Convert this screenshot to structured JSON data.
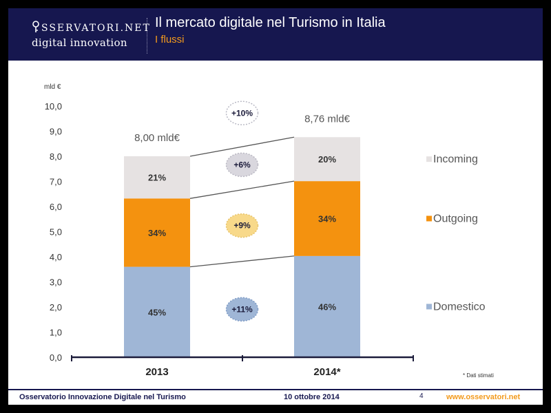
{
  "header": {
    "logo_top": "SSERVATORI.NET",
    "logo_bottom": "digital innovation",
    "title": "Il mercato digitale nel Turismo in Italia",
    "subtitle": "I flussi"
  },
  "colors": {
    "header_bg": "#16174f",
    "accent": "#f39a1c",
    "domestico": "#9fb6d6",
    "outgoing": "#f4920f",
    "incoming": "#e6e2e2",
    "badge_growth": "#f8d98a",
    "badge_light": "#d9d7de"
  },
  "chart_data": {
    "type": "bar",
    "stacked": true,
    "unit_label": "mld €",
    "ylim": [
      0,
      10
    ],
    "yticks": [
      "0,0",
      "1,0",
      "2,0",
      "3,0",
      "4,0",
      "5,0",
      "6,0",
      "7,0",
      "8,0",
      "9,0",
      "10,0"
    ],
    "categories": [
      "2013",
      "2014*"
    ],
    "totals": [
      8.0,
      8.76
    ],
    "total_labels": [
      "8,00 mld€",
      "8,76 mld€"
    ],
    "series": [
      {
        "name": "Domestico",
        "values": [
          3.6,
          4.03
        ],
        "labels": [
          "45%",
          "46%"
        ],
        "color": "#9fb6d6"
      },
      {
        "name": "Outgoing",
        "values": [
          2.72,
          2.98
        ],
        "labels": [
          "34%",
          "34%"
        ],
        "color": "#f4920f"
      },
      {
        "name": "Incoming",
        "values": [
          1.68,
          1.75
        ],
        "labels": [
          "21%",
          "20%"
        ],
        "color": "#e6e2e2"
      }
    ],
    "growth_badges": [
      {
        "label": "+10%",
        "style": "outline"
      },
      {
        "label": "+6%",
        "style": "grey"
      },
      {
        "label": "+9%",
        "style": "yellow"
      },
      {
        "label": "+11%",
        "style": "blue"
      }
    ],
    "legend_position": "right",
    "note": "* Dati stimati"
  },
  "footer": {
    "left": "Osservatorio Innovazione Digitale nel Turismo",
    "date": "10 ottobre 2014",
    "page": "4",
    "url": "www.osservatori.net"
  }
}
